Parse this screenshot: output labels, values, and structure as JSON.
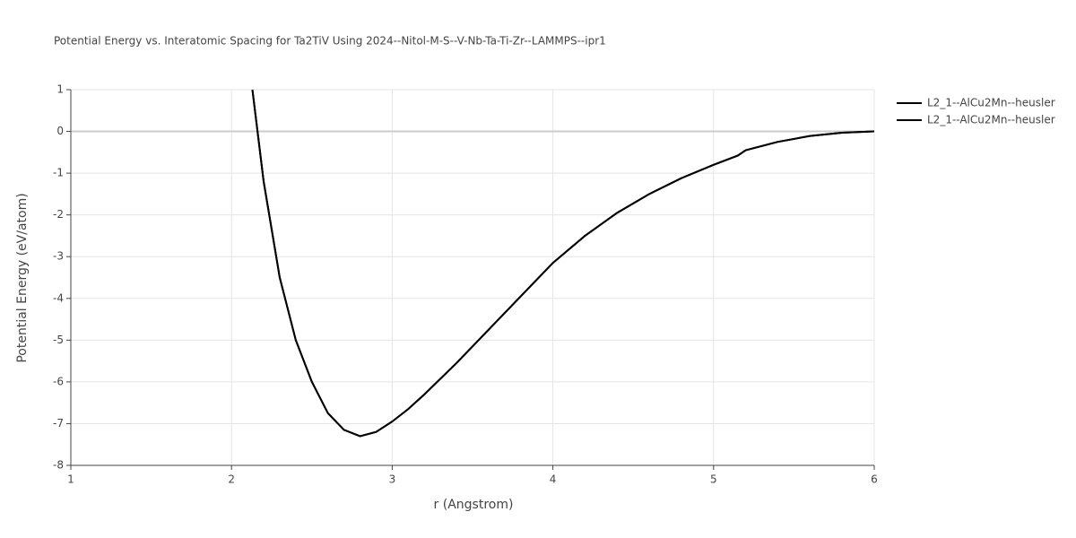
{
  "chart_data": {
    "type": "line",
    "title": "Potential Energy vs. Interatomic Spacing for Ta2TiV Using 2024--Nitol-M-S--V-Nb-Ta-Ti-Zr--LAMMPS--ipr1",
    "x_label": "r (Angstrom)",
    "y_label": "Potential Energy (eV/atom)",
    "xlim": [
      1,
      6
    ],
    "ylim": [
      -8,
      1
    ],
    "xticks": [
      1,
      2,
      3,
      4,
      5,
      6
    ],
    "yticks": [
      1,
      0,
      -1,
      -2,
      -3,
      -4,
      -5,
      -6,
      -7,
      -8
    ],
    "grid": true,
    "legend": "outside-right",
    "x": [
      2.13,
      2.2,
      2.3,
      2.4,
      2.5,
      2.6,
      2.7,
      2.8,
      2.9,
      3.0,
      3.1,
      3.2,
      3.4,
      3.6,
      3.8,
      4.0,
      4.2,
      4.4,
      4.6,
      4.8,
      5.0,
      5.15,
      5.2,
      5.4,
      5.6,
      5.8,
      6.0
    ],
    "series": [
      {
        "name": "L2_1--AlCu2Mn--heusler",
        "color": "#000000",
        "values": [
          1,
          -1.2,
          -3.5,
          -5.0,
          -6.0,
          -6.75,
          -7.15,
          -7.3,
          -7.2,
          -6.95,
          -6.65,
          -6.3,
          -5.55,
          -4.75,
          -3.95,
          -3.15,
          -2.5,
          -1.95,
          -1.5,
          -1.12,
          -0.8,
          -0.58,
          -0.45,
          -0.25,
          -0.11,
          -0.03,
          0
        ]
      },
      {
        "name": "L2_1--AlCu2Mn--heusler",
        "color": "#000000",
        "values": [
          1,
          -1.2,
          -3.5,
          -5.0,
          -6.0,
          -6.75,
          -7.15,
          -7.3,
          -7.2,
          -6.95,
          -6.65,
          -6.3,
          -5.55,
          -4.75,
          -3.95,
          -3.15,
          -2.5,
          -1.95,
          -1.5,
          -1.12,
          -0.8,
          -0.58,
          -0.45,
          -0.25,
          -0.11,
          -0.03,
          0
        ]
      }
    ]
  }
}
